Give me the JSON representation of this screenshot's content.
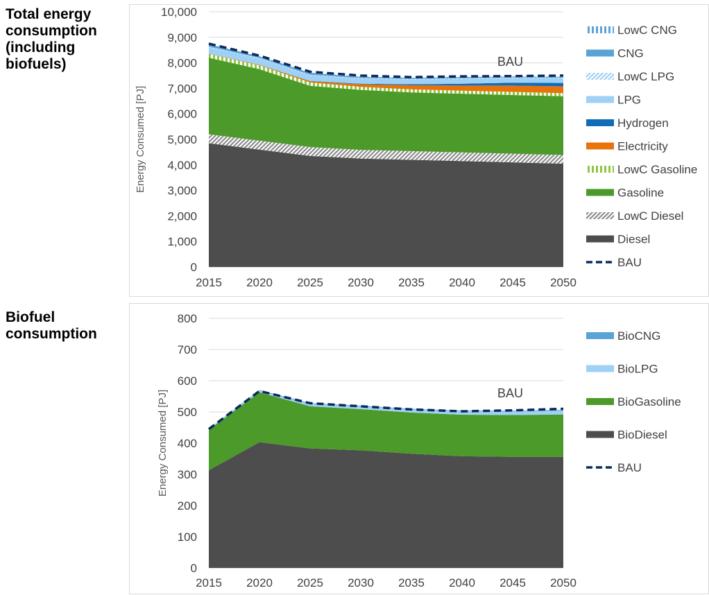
{
  "labels": {
    "energy_lines": [
      "Total energy",
      "consumption",
      "(including",
      "biofuels)"
    ],
    "biofuel_lines": [
      "Biofuel",
      "consumption"
    ]
  },
  "chart_data": [
    {
      "id": "total",
      "type": "area",
      "stacked": true,
      "x": [
        2015,
        2020,
        2025,
        2030,
        2035,
        2040,
        2045,
        2050
      ],
      "ylabel": "Energy Consumed [PJ]",
      "ylim": [
        0,
        10000
      ],
      "yticks": [
        0,
        1000,
        2000,
        3000,
        4000,
        5000,
        6000,
        7000,
        8000,
        9000,
        10000
      ],
      "ytick_labels": [
        "0",
        "1,000",
        "2,000",
        "3,000",
        "4,000",
        "5,000",
        "6,000",
        "7,000",
        "8,000",
        "9,000",
        "10,000"
      ],
      "xtick_labels": [
        "2015",
        "2020",
        "2025",
        "2030",
        "2035",
        "2040",
        "2045",
        "2050"
      ],
      "grid": true,
      "legend_position": "right",
      "annotation": "BAU",
      "series": [
        {
          "name": "Diesel",
          "pattern": "solid",
          "color": "#4d4d4d",
          "values": [
            4850,
            4600,
            4350,
            4250,
            4200,
            4150,
            4100,
            4050
          ]
        },
        {
          "name": "LowC Diesel",
          "pattern": "diagonal",
          "color": "#8c8c8c",
          "values": [
            350,
            350,
            350,
            340,
            340,
            340,
            340,
            340
          ]
        },
        {
          "name": "Gasoline",
          "pattern": "solid",
          "color": "#4c9a2a",
          "values": [
            3000,
            2800,
            2400,
            2350,
            2300,
            2300,
            2300,
            2300
          ]
        },
        {
          "name": "LowC Gasoline",
          "pattern": "vertical",
          "color": "#8ec641",
          "values": [
            150,
            150,
            130,
            120,
            120,
            120,
            120,
            120
          ]
        },
        {
          "name": "Electricity",
          "pattern": "solid",
          "color": "#e8730c",
          "values": [
            10,
            20,
            50,
            100,
            160,
            200,
            250,
            270
          ]
        },
        {
          "name": "Hydrogen",
          "pattern": "solid",
          "color": "#0f6cb6",
          "values": [
            0,
            0,
            10,
            20,
            40,
            70,
            110,
            130
          ]
        },
        {
          "name": "LPG",
          "pattern": "solid",
          "color": "#9fd0f5",
          "values": [
            250,
            250,
            220,
            200,
            190,
            190,
            190,
            190
          ]
        },
        {
          "name": "LowC LPG",
          "pattern": "diagonal",
          "color": "#9fd0f5",
          "values": [
            20,
            20,
            20,
            20,
            20,
            20,
            20,
            20
          ]
        },
        {
          "name": "CNG",
          "pattern": "solid",
          "color": "#5aa3d6",
          "values": [
            100,
            60,
            80,
            50,
            40,
            50,
            30,
            30
          ]
        },
        {
          "name": "LowC CNG",
          "pattern": "vertical",
          "color": "#5aa3d6",
          "values": [
            10,
            10,
            10,
            10,
            10,
            10,
            10,
            10
          ]
        }
      ],
      "line": {
        "name": "BAU",
        "color": "#0b2a5b",
        "values": [
          8750,
          8280,
          7650,
          7500,
          7440,
          7470,
          7480,
          7500
        ]
      },
      "legend_order": [
        "LowC CNG",
        "CNG",
        "LowC LPG",
        "LPG",
        "Hydrogen",
        "Electricity",
        "LowC Gasoline",
        "Gasoline",
        "LowC Diesel",
        "Diesel",
        "BAU"
      ]
    },
    {
      "id": "biofuel",
      "type": "area",
      "stacked": true,
      "x": [
        2015,
        2020,
        2025,
        2030,
        2035,
        2040,
        2045,
        2050
      ],
      "ylabel": "Energy Consumed [PJ]",
      "ylim": [
        0,
        800
      ],
      "yticks": [
        0,
        100,
        200,
        300,
        400,
        500,
        600,
        700,
        800
      ],
      "ytick_labels": [
        "0",
        "100",
        "200",
        "300",
        "400",
        "500",
        "600",
        "700",
        "800"
      ],
      "xtick_labels": [
        "2015",
        "2020",
        "2025",
        "2030",
        "2035",
        "2040",
        "2045",
        "2050"
      ],
      "grid": true,
      "legend_position": "right",
      "annotation": "BAU",
      "series": [
        {
          "name": "BioDiesel",
          "pattern": "solid",
          "color": "#4d4d4d",
          "values": [
            313,
            403,
            383,
            377,
            366,
            358,
            356,
            356
          ]
        },
        {
          "name": "BioGasoline",
          "pattern": "solid",
          "color": "#4c9a2a",
          "values": [
            130,
            160,
            135,
            132,
            132,
            133,
            134,
            136
          ]
        },
        {
          "name": "BioLPG",
          "pattern": "solid",
          "color": "#9fd0f5",
          "values": [
            3,
            5,
            8,
            9,
            10,
            11,
            12,
            12
          ]
        },
        {
          "name": "BioCNG",
          "pattern": "solid",
          "color": "#5aa3d6",
          "values": [
            1,
            2,
            2,
            2,
            2,
            2,
            2,
            2
          ]
        }
      ],
      "line": {
        "name": "BAU",
        "color": "#0b2a5b",
        "values": [
          445,
          567,
          528,
          518,
          508,
          502,
          505,
          510
        ]
      },
      "legend_order": [
        "BioCNG",
        "BioLPG",
        "BioGasoline",
        "BioDiesel",
        "BAU"
      ]
    }
  ]
}
